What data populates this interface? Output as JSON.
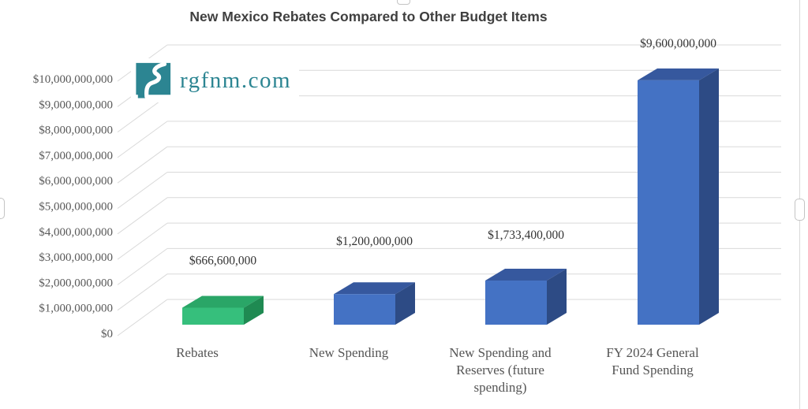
{
  "logo": {
    "text": "rgfnm.com",
    "color": "#2c8592",
    "icon": "new-mexico-state-river-icon"
  },
  "chart_data": {
    "type": "bar",
    "projection": "3d",
    "title": "New Mexico Rebates Compared to Other Budget Items",
    "categories": [
      "Rebates",
      "New Spending",
      "New Spending and Reserves (future spending)",
      "FY 2024 General Fund Spending"
    ],
    "category_label_lines": [
      [
        "Rebates"
      ],
      [
        "New Spending"
      ],
      [
        "New Spending and",
        "Reserves (future",
        "spending)"
      ],
      [
        "FY 2024 General",
        "Fund Spending"
      ]
    ],
    "values": [
      666600000,
      1200000000,
      1733400000,
      9600000000
    ],
    "data_labels": [
      "$666,600,000",
      "$1,200,000,000",
      "$1,733,400,000",
      "$9,600,000,000"
    ],
    "bar_colors": [
      {
        "front": "#36bf7c",
        "top": "#2aa667",
        "side": "#1f8a52"
      },
      {
        "front": "#4472c4",
        "top": "#36589e",
        "side": "#2d4b85"
      },
      {
        "front": "#4472c4",
        "top": "#36589e",
        "side": "#2d4b85"
      },
      {
        "front": "#4472c4",
        "top": "#36589e",
        "side": "#2d4b85"
      }
    ],
    "y_ticks": [
      "$0",
      "$1,000,000,000",
      "$2,000,000,000",
      "$3,000,000,000",
      "$4,000,000,000",
      "$5,000,000,000",
      "$6,000,000,000",
      "$7,000,000,000",
      "$8,000,000,000",
      "$9,000,000,000",
      "$10,000,000,000"
    ],
    "ylim": [
      0,
      10000000000
    ],
    "xlabel": "",
    "ylabel": "",
    "grid": true,
    "gridline_color": "#d9d9d9",
    "legend": false
  }
}
